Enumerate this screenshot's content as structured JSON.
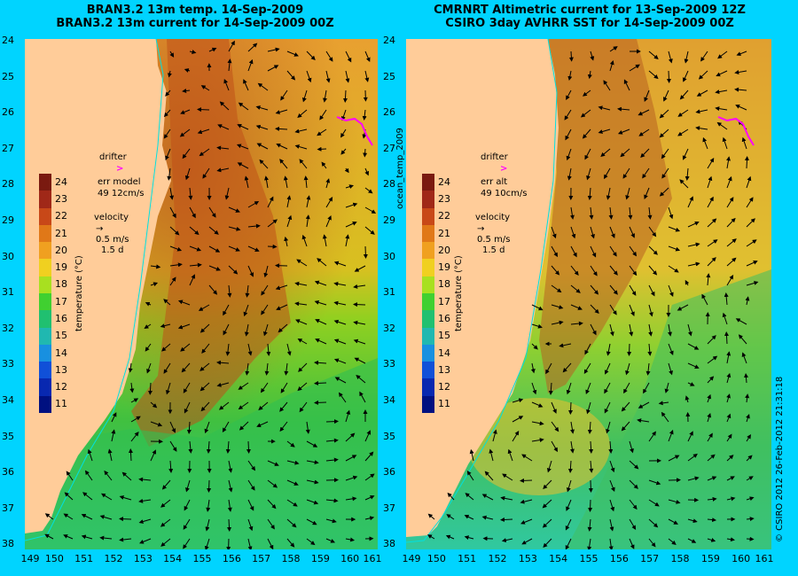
{
  "left_panel": {
    "title_line1": "BRAN3.2 13m temp. 14-Sep-2009",
    "title_line2": "BRAN3.2 13m current for 14-Sep-2009 00Z",
    "legend": {
      "drifter": "drifter",
      "err_label": "err model",
      "err_value": "49 12cm/s",
      "velocity": "velocity",
      "speed": "0.5 m/s",
      "duration": "1.5 d"
    }
  },
  "right_panel": {
    "title_line1": "CMRNRT Altimetric current for 13-Sep-2009 12Z",
    "title_line2": "CSIRO 3day AVHRR SST for 14-Sep-2009 00Z",
    "legend": {
      "drifter": "drifter",
      "err_label": "err alt",
      "err_value": "49 10cm/s",
      "velocity": "velocity",
      "speed": "0.5 m/s",
      "duration": "1.5 d"
    }
  },
  "lat_labels": [
    "24",
    "25",
    "26",
    "27",
    "28",
    "29",
    "30",
    "31",
    "32",
    "33",
    "34",
    "35",
    "36",
    "37",
    "38"
  ],
  "lon_labels": [
    "149",
    "150",
    "151",
    "152",
    "153",
    "154",
    "155",
    "156",
    "157",
    "158",
    "159",
    "160",
    "161"
  ],
  "colorbar": {
    "title": "temperature (°C)",
    "ticks": [
      "24",
      "23",
      "22",
      "21",
      "20",
      "19",
      "18",
      "17",
      "16",
      "15",
      "14",
      "13",
      "12",
      "11"
    ]
  },
  "side_label": "ocean_temp_2009",
  "credit": "© CSIRO 2012   26-Feb-2012 21:31:18",
  "colors": {
    "background": "#00d4ff",
    "land": "#ffcc99",
    "drifter": "#ff00ff",
    "coast": "#00e0e0"
  }
}
